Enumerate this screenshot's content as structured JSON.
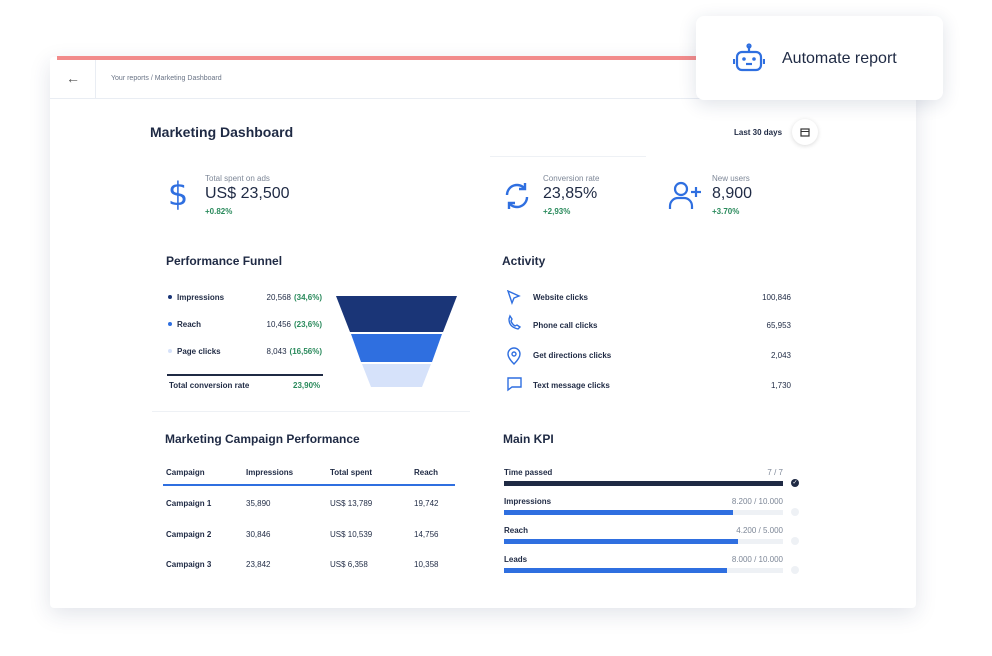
{
  "breadcrumb": "Your reports / Marketing Dashboard",
  "automate": "Automate report",
  "title": "Marketing Dashboard",
  "date_range": "Last 30 days",
  "stats": [
    {
      "label": "Total spent on ads",
      "value": "US$ 23,500",
      "change": "+0.82%"
    },
    {
      "label": "Conversion rate",
      "value": "23,85%",
      "change": "+2,93%"
    },
    {
      "label": "New users",
      "value": "8,900",
      "change": "+3.70%"
    }
  ],
  "funnel": {
    "title": "Performance Funnel",
    "rows": [
      {
        "name": "Impressions",
        "value": "20,568",
        "percent": "(34,6%)"
      },
      {
        "name": "Reach",
        "value": "10,456",
        "percent": "(23,6%)"
      },
      {
        "name": "Page clicks",
        "value": "8,043",
        "percent": "(16,56%)"
      }
    ],
    "total_label": "Total conversion rate",
    "total_value": "23,90%"
  },
  "activity": {
    "title": "Activity",
    "rows": [
      {
        "name": "Website clicks",
        "value": "100,846"
      },
      {
        "name": "Phone call clicks",
        "value": "65,953"
      },
      {
        "name": "Get directions clicks",
        "value": "2,043"
      },
      {
        "name": "Text message clicks",
        "value": "1,730"
      }
    ]
  },
  "campaigns": {
    "title": "Marketing Campaign Performance",
    "columns": [
      "Campaign",
      "Impressions",
      "Total spent",
      "Reach"
    ],
    "rows": [
      [
        "Campaign 1",
        "35,890",
        "US$ 13,789",
        "19,742"
      ],
      [
        "Campaign 2",
        "30,846",
        "US$ 10,539",
        "14,756"
      ],
      [
        "Campaign 3",
        "23,842",
        "US$ 6,358",
        "10,358"
      ]
    ]
  },
  "kpi": {
    "title": "Main KPI",
    "items": [
      {
        "name": "Time passed",
        "label": "7 / 7",
        "value": 7,
        "max": 7
      },
      {
        "name": "Impressions",
        "label": "8.200 / 10.000",
        "value": 8200,
        "max": 10000
      },
      {
        "name": "Reach",
        "label": "4.200 / 5.000",
        "value": 4200,
        "max": 5000
      },
      {
        "name": "Leads",
        "label": "8.000 / 10.000",
        "value": 8000,
        "max": 10000
      }
    ]
  }
}
